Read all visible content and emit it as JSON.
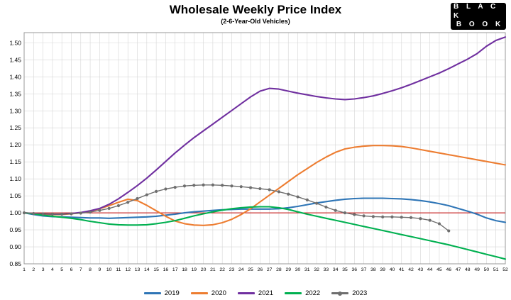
{
  "header": {
    "title": "Wholesale Weekly Price Index",
    "subtitle": "(2-6-Year-Old Vehicles)"
  },
  "logo": {
    "line1": "BLACK",
    "line2": "BOOK"
  },
  "chart_data": {
    "type": "line",
    "title": "Wholesale Weekly Price Index",
    "subtitle": "(2-6-Year-Old Vehicles)",
    "xlabel": "",
    "ylabel": "",
    "x": [
      1,
      2,
      3,
      4,
      5,
      6,
      7,
      8,
      9,
      10,
      11,
      12,
      13,
      14,
      15,
      16,
      17,
      18,
      19,
      20,
      21,
      22,
      23,
      24,
      25,
      26,
      27,
      28,
      29,
      30,
      31,
      32,
      33,
      34,
      35,
      36,
      37,
      38,
      39,
      40,
      41,
      42,
      43,
      44,
      45,
      46,
      47,
      48,
      49,
      50,
      51,
      52
    ],
    "ylim": [
      0.85,
      1.53
    ],
    "yticks": [
      0.85,
      0.9,
      0.95,
      1.0,
      1.05,
      1.1,
      1.15,
      1.2,
      1.25,
      1.3,
      1.35,
      1.4,
      1.45,
      1.5
    ],
    "grid": true,
    "legend_position": "bottom",
    "reference_line": {
      "y": 1.0,
      "color": "#C00000"
    },
    "colors": {
      "grid": "#d6d6d6",
      "border": "#9a9a9a",
      "axis_text": "#000000"
    },
    "series": [
      {
        "name": "2019",
        "color": "#2E75B6",
        "marker": false,
        "values": [
          1.0,
          0.995,
          0.991,
          0.989,
          0.988,
          0.987,
          0.986,
          0.985,
          0.985,
          0.984,
          0.985,
          0.986,
          0.987,
          0.988,
          0.99,
          0.993,
          0.996,
          1.0,
          1.003,
          1.005,
          1.007,
          1.009,
          1.01,
          1.011,
          1.011,
          1.011,
          1.011,
          1.012,
          1.015,
          1.019,
          1.024,
          1.029,
          1.033,
          1.037,
          1.04,
          1.042,
          1.043,
          1.043,
          1.043,
          1.042,
          1.041,
          1.039,
          1.036,
          1.032,
          1.027,
          1.021,
          1.013,
          1.005,
          0.996,
          0.985,
          0.977,
          0.972
        ]
      },
      {
        "name": "2020",
        "color": "#ED7D31",
        "marker": false,
        "values": [
          1.0,
          0.998,
          0.996,
          0.995,
          0.995,
          0.997,
          1.0,
          1.005,
          1.012,
          1.021,
          1.031,
          1.04,
          1.036,
          1.022,
          1.006,
          0.99,
          0.976,
          0.968,
          0.964,
          0.963,
          0.965,
          0.971,
          0.981,
          0.995,
          1.012,
          1.032,
          1.052,
          1.072,
          1.092,
          1.112,
          1.13,
          1.148,
          1.164,
          1.178,
          1.188,
          1.193,
          1.196,
          1.198,
          1.198,
          1.197,
          1.195,
          1.191,
          1.186,
          1.181,
          1.176,
          1.171,
          1.166,
          1.161,
          1.156,
          1.151,
          1.146,
          1.141
        ]
      },
      {
        "name": "2021",
        "color": "#7030A0",
        "marker": false,
        "values": [
          1.0,
          0.998,
          0.997,
          0.996,
          0.996,
          0.998,
          1.001,
          1.006,
          1.013,
          1.025,
          1.041,
          1.06,
          1.08,
          1.102,
          1.126,
          1.151,
          1.176,
          1.199,
          1.221,
          1.241,
          1.261,
          1.281,
          1.301,
          1.321,
          1.341,
          1.358,
          1.366,
          1.364,
          1.358,
          1.352,
          1.347,
          1.342,
          1.338,
          1.335,
          1.333,
          1.335,
          1.339,
          1.344,
          1.351,
          1.359,
          1.368,
          1.378,
          1.389,
          1.4,
          1.411,
          1.424,
          1.438,
          1.452,
          1.468,
          1.49,
          1.507,
          1.517
        ]
      },
      {
        "name": "2022",
        "color": "#00B050",
        "marker": false,
        "values": [
          1.0,
          0.997,
          0.993,
          0.99,
          0.987,
          0.984,
          0.98,
          0.975,
          0.971,
          0.967,
          0.965,
          0.964,
          0.964,
          0.965,
          0.968,
          0.972,
          0.977,
          0.984,
          0.991,
          0.997,
          1.003,
          1.008,
          1.012,
          1.015,
          1.017,
          1.018,
          1.018,
          1.015,
          1.01,
          1.003,
          0.996,
          0.99,
          0.984,
          0.978,
          0.972,
          0.966,
          0.96,
          0.954,
          0.948,
          0.942,
          0.936,
          0.93,
          0.924,
          0.918,
          0.912,
          0.906,
          0.899,
          0.892,
          0.885,
          0.878,
          0.871,
          0.864
        ]
      },
      {
        "name": "2023",
        "color": "#6E6E6E",
        "marker": true,
        "values": [
          1.0,
          0.998,
          0.997,
          0.996,
          0.996,
          0.997,
          0.999,
          1.002,
          1.007,
          1.013,
          1.021,
          1.031,
          1.042,
          1.053,
          1.063,
          1.07,
          1.075,
          1.079,
          1.081,
          1.082,
          1.082,
          1.081,
          1.079,
          1.077,
          1.074,
          1.071,
          1.068,
          1.062,
          1.055,
          1.047,
          1.038,
          1.028,
          1.017,
          1.007,
          1.0,
          0.995,
          0.991,
          0.989,
          0.988,
          0.988,
          0.987,
          0.986,
          0.983,
          0.978,
          0.968,
          0.947
        ]
      }
    ]
  }
}
